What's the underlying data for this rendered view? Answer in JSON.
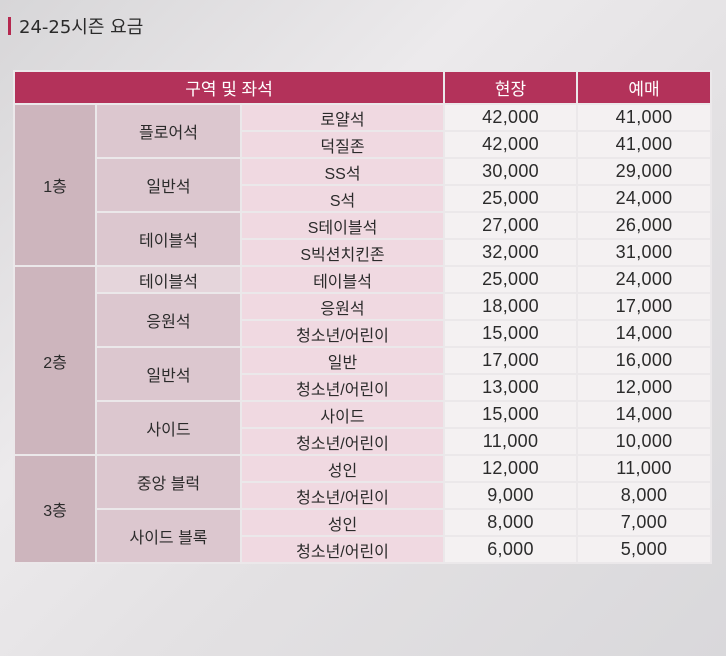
{
  "title": "24-25시즌 요금",
  "headers": {
    "zone_seat": "구역 및 좌석",
    "onsite": "현장",
    "advance": "예매"
  },
  "floors": [
    {
      "floor": "1층",
      "zones": [
        {
          "zone": "플로어석",
          "rows": [
            {
              "seat": "로얄석",
              "onsite": "42,000",
              "advance": "41,000"
            },
            {
              "seat": "덕질존",
              "onsite": "42,000",
              "advance": "41,000"
            }
          ]
        },
        {
          "zone": "일반석",
          "rows": [
            {
              "seat": "SS석",
              "onsite": "30,000",
              "advance": "29,000"
            },
            {
              "seat": "S석",
              "onsite": "25,000",
              "advance": "24,000"
            }
          ]
        },
        {
          "zone": "테이블석",
          "rows": [
            {
              "seat": "S테이블석",
              "onsite": "27,000",
              "advance": "26,000"
            },
            {
              "seat": "S빅션치킨존",
              "onsite": "32,000",
              "advance": "31,000"
            }
          ]
        }
      ]
    },
    {
      "floor": "2층",
      "zones": [
        {
          "zone": "테이블석",
          "rows": [
            {
              "seat": "테이블석",
              "onsite": "25,000",
              "advance": "24,000"
            }
          ]
        },
        {
          "zone": "응원석",
          "rows": [
            {
              "seat": "응원석",
              "onsite": "18,000",
              "advance": "17,000"
            },
            {
              "seat": "청소년/어린이",
              "onsite": "15,000",
              "advance": "14,000"
            }
          ]
        },
        {
          "zone": "일반석",
          "rows": [
            {
              "seat": "일반",
              "onsite": "17,000",
              "advance": "16,000"
            },
            {
              "seat": "청소년/어린이",
              "onsite": "13,000",
              "advance": "12,000"
            }
          ]
        },
        {
          "zone": "사이드",
          "rows": [
            {
              "seat": "사이드",
              "onsite": "15,000",
              "advance": "14,000"
            },
            {
              "seat": "청소년/어린이",
              "onsite": "11,000",
              "advance": "10,000"
            }
          ]
        }
      ]
    },
    {
      "floor": "3층",
      "zones": [
        {
          "zone": "중앙 블럭",
          "rows": [
            {
              "seat": "성인",
              "onsite": "12,000",
              "advance": "11,000"
            },
            {
              "seat": "청소년/어린이",
              "onsite": "9,000",
              "advance": "8,000"
            }
          ]
        },
        {
          "zone": "사이드 블록",
          "rows": [
            {
              "seat": "성인",
              "onsite": "8,000",
              "advance": "7,000"
            },
            {
              "seat": "청소년/어린이",
              "onsite": "6,000",
              "advance": "5,000"
            }
          ]
        }
      ]
    }
  ]
}
